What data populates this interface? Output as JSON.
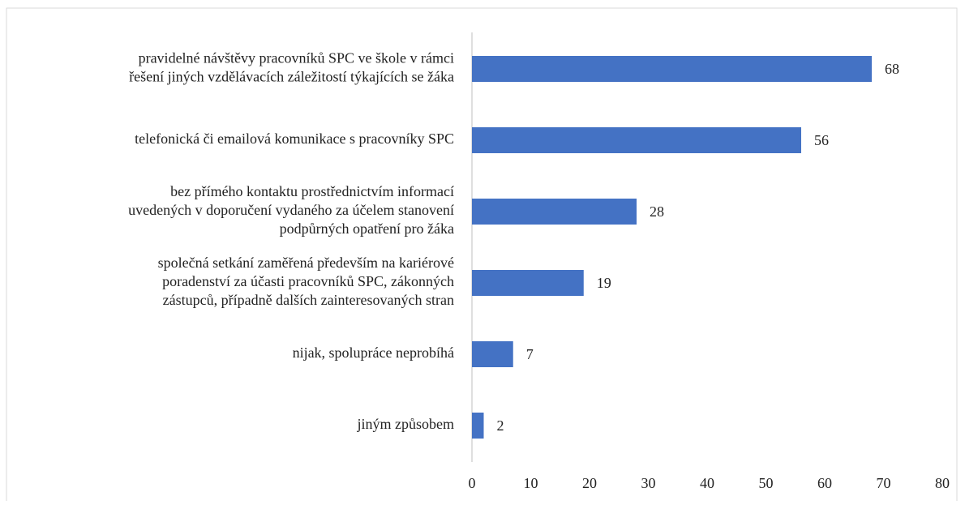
{
  "chart_data": {
    "type": "bar",
    "orientation": "horizontal",
    "categories": [
      [
        "pravidelné návštěvy pracovníků SPC ve škole v rámci",
        "řešení jiných vzdělávacích záležitostí týkajících se žáka"
      ],
      [
        "telefonická či emailová komunikace s pracovníky SPC"
      ],
      [
        "bez přímého kontaktu prostřednictvím informací",
        "uvedených v doporučení vydaného za účelem stanovení",
        "podpůrných opatření pro žáka"
      ],
      [
        "společná setkání zaměřená především na kariérové",
        "poradenství za účasti pracovníků SPC, zákonných",
        "zástupců, případně dalších zainteresovaných stran"
      ],
      [
        "nijak, spolupráce neprobíhá"
      ],
      [
        "jiným způsobem"
      ]
    ],
    "values": [
      68,
      56,
      28,
      19,
      7,
      2
    ],
    "color": "#4472c4",
    "xlim": [
      0,
      80
    ],
    "xticks": [
      0,
      10,
      20,
      30,
      40,
      50,
      60,
      70,
      80
    ]
  }
}
